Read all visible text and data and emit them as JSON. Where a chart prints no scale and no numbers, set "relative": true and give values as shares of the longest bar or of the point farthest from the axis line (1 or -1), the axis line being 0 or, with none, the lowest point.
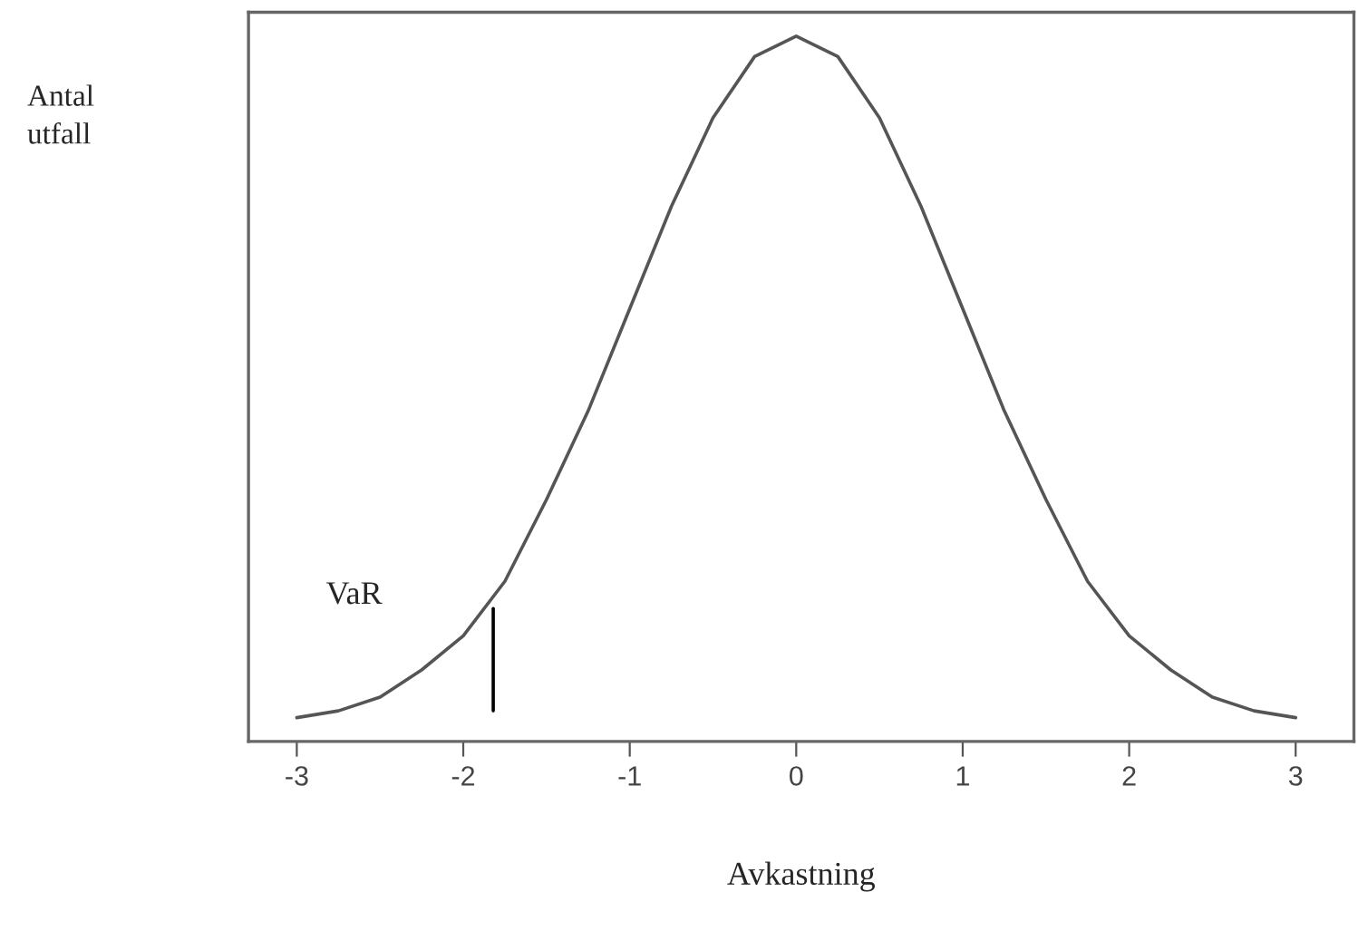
{
  "chart_data": {
    "type": "line",
    "relative": true,
    "xlabel": "Avkastning",
    "x": [
      -3,
      -2.75,
      -2.5,
      -2.25,
      -2,
      -1.75,
      -1.5,
      -1.25,
      -1,
      -0.75,
      -0.5,
      -0.25,
      0,
      0.25,
      0.5,
      0.75,
      1,
      1.25,
      1.5,
      1.75,
      2,
      2.25,
      2.5,
      2.75,
      3
    ],
    "series": [
      {
        "color": "#555555",
        "values": [
          0,
          0.01,
          0.03,
          0.07,
          0.12,
          0.2,
          0.32,
          0.45,
          0.6,
          0.75,
          0.88,
          0.97,
          1,
          0.97,
          0.88,
          0.75,
          0.6,
          0.45,
          0.32,
          0.2,
          0.12,
          0.07,
          0.03,
          0.01,
          0
        ]
      },
      {
        "color": "#000000",
        "x": [
          -1.82,
          -1.82
        ],
        "values": [
          0.01,
          0.16
        ]
      }
    ],
    "xlim": [
      -3.29,
      3.35
    ],
    "xticks": [
      {
        "value": -3,
        "label": "-3"
      },
      {
        "value": -2,
        "label": "-2"
      },
      {
        "value": -1,
        "label": "-1"
      },
      0,
      1,
      2,
      3
    ],
    "annotations": [
      "Antal\nutfall",
      "VaR"
    ],
    "tick_labels": "x",
    "grid": false,
    "legend": false,
    "marker": "none",
    "line_style": "solid"
  }
}
